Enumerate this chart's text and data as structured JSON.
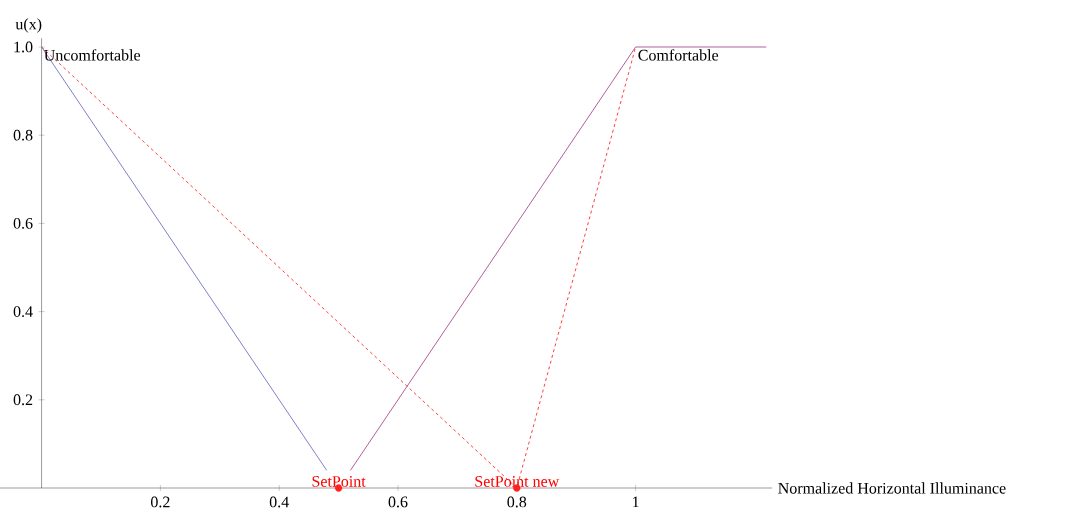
{
  "chart_data": {
    "type": "line",
    "xlabel": "Normalized Horizontal Illuminance",
    "ylabel": "u(x)",
    "xlim": [
      -0.07,
      1.23
    ],
    "ylim": [
      0,
      1.02
    ],
    "xticks": [
      0.2,
      0.4,
      0.6,
      0.8,
      {
        "value": 1,
        "label": "1"
      }
    ],
    "yticks": [
      0.2,
      0.4,
      0.6,
      0.8,
      {
        "value": 1,
        "label": "1.0"
      }
    ],
    "series": [
      {
        "name": "Uncomfortable",
        "color": "#8080c8",
        "x": [
          0,
          0.48
        ],
        "values": [
          1,
          0.04
        ]
      },
      {
        "name": "Comfortable",
        "color": "#b0609c",
        "x": [
          0.52,
          1,
          1.22
        ],
        "values": [
          0.04,
          1,
          1
        ]
      },
      {
        "color": "#ff4040",
        "line_style": "dashed",
        "x": [
          0,
          0.8,
          1
        ],
        "values": [
          1,
          0,
          1
        ]
      },
      {
        "type": "scatter",
        "marker": "circle",
        "color": "#ff2020",
        "x": [
          0.5,
          0.8
        ],
        "values": [
          0,
          0
        ]
      }
    ],
    "annotations": [
      {
        "text": "SetPoint",
        "x": 0.5,
        "y": 0
      },
      {
        "text": "SetPoint  new",
        "x": 0.8,
        "y": 0
      }
    ]
  }
}
